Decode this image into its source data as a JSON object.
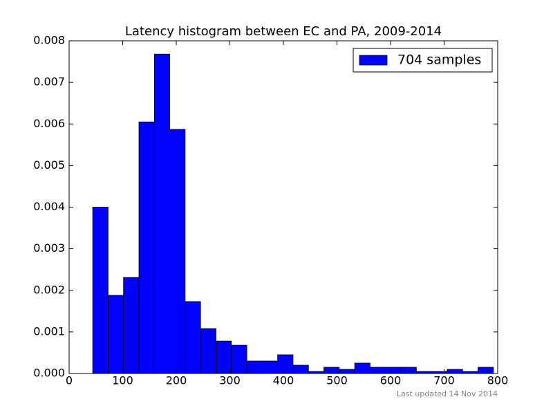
{
  "chart_data": {
    "type": "histogram",
    "title": "Latency histogram between EC and PA, 2009-2014",
    "annotation": "Last updated 14 Nov 2014",
    "bins": [
      44,
      72.8,
      101.5,
      130.3,
      159.1,
      187.8,
      216.6,
      245.4,
      274.2,
      302.9,
      331.7,
      360.5,
      389.2,
      418,
      446.8,
      475.5,
      504.3,
      533.1,
      561.8,
      590.6,
      619.4,
      648.2,
      676.9,
      705.7,
      734.5,
      763.2,
      792
    ],
    "series": [
      {
        "name": "704 samples",
        "color": "#0000ff",
        "values": [
          0.004,
          0.00188,
          0.00231,
          0.00605,
          0.00768,
          0.00587,
          0.00173,
          0.00108,
          0.00078,
          0.00068,
          0.0003,
          0.0003,
          0.00045,
          0.0002,
          5e-05,
          0.00015,
          0.0001,
          0.00025,
          0.00015,
          0.00015,
          0.00015,
          5e-05,
          5e-05,
          0.0001,
          5e-05,
          0.00015
        ]
      }
    ],
    "xlim": [
      0,
      800
    ],
    "xticks": [
      0,
      100,
      200,
      300,
      400,
      500,
      600,
      700,
      800
    ],
    "ylim": [
      0,
      0.008
    ],
    "yticks": [
      {
        "value": 0,
        "label": "0.000"
      },
      0.001,
      0.002,
      0.003,
      0.004,
      0.005,
      0.006,
      0.007,
      0.008
    ],
    "legend": "upper right"
  }
}
